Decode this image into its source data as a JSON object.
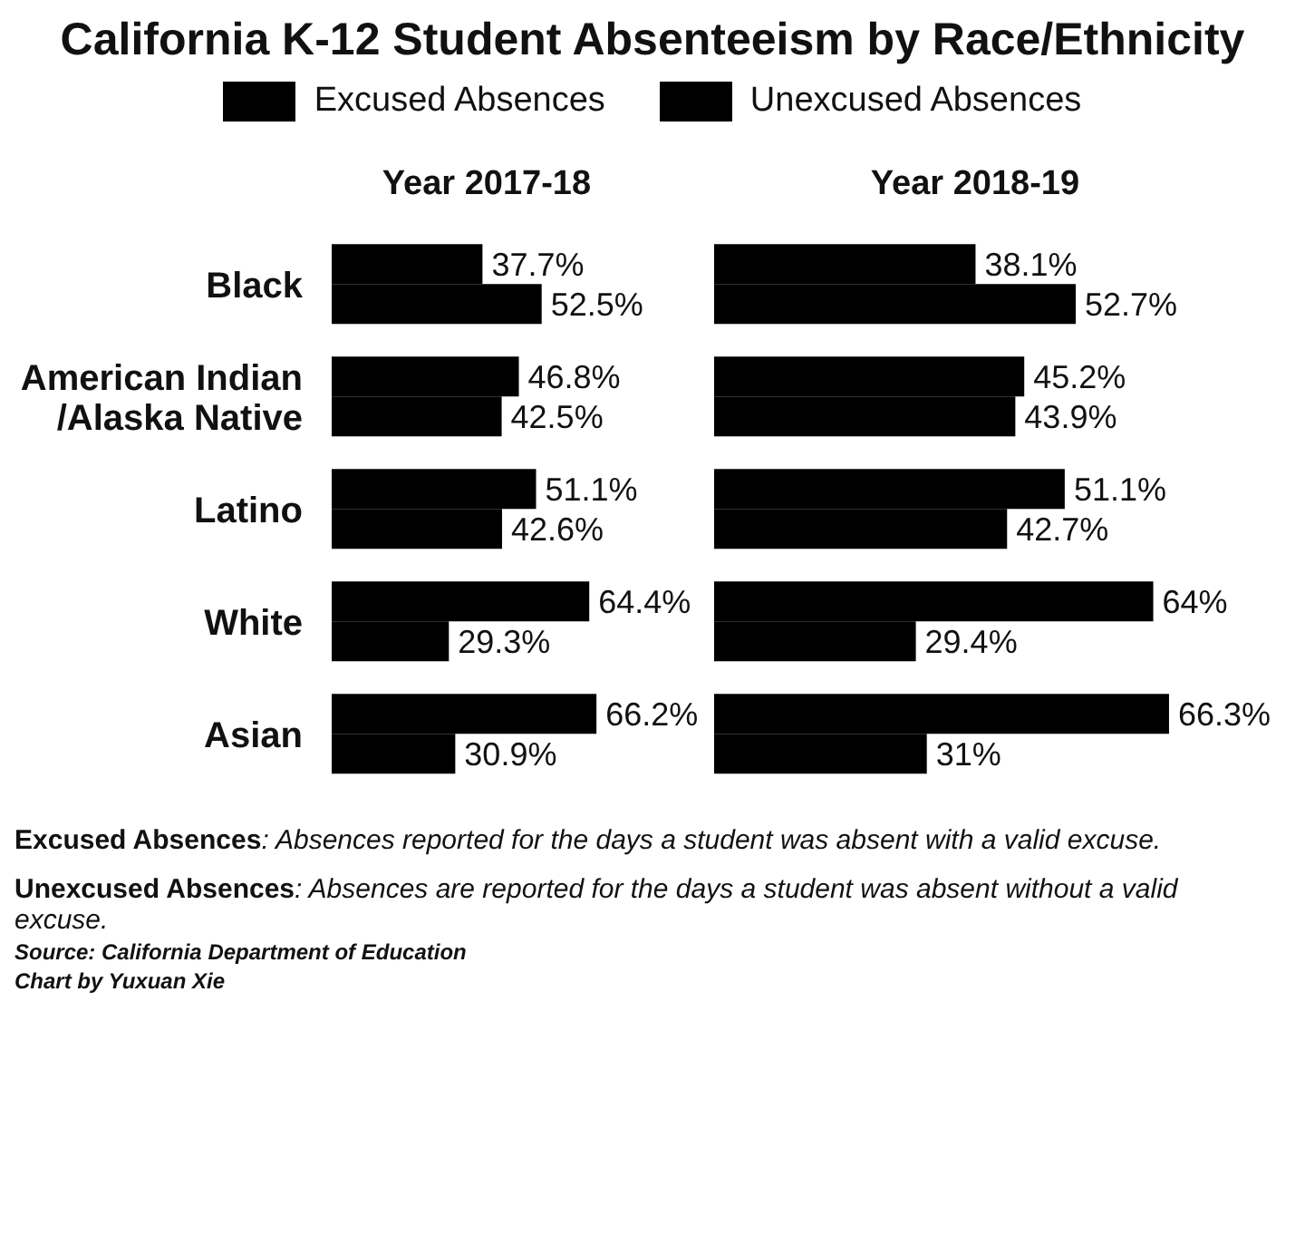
{
  "chart_data": [
    {
      "type": "other",
      "title": "California K-12 Student Absenteeism by Race/Ethnicity",
      "annotations": [
        "Excused Absences: Absences reported for the days a student was absent with a valid excuse.",
        "Unexcused Absences: Absences are reported for the days a student was absent without a valid excuse.",
        "Source: California Department of Education",
        "Chart by Yuxuan Xie"
      ]
    },
    {
      "type": "bar",
      "orientation": "horizontal",
      "title": "Year 2017-18",
      "categories": [
        "Black",
        "American Indian /Alaska Native",
        "Latino",
        "White",
        "Asian"
      ],
      "legend": "top",
      "series": [
        {
          "name": "Excused Absences",
          "color": "#000000",
          "values": [
            37.7,
            46.8,
            51.1,
            64.4,
            66.2
          ],
          "value_labels": [
            "37.7%",
            "46.8%",
            "51.1%",
            "64.4%",
            "66.2%"
          ]
        },
        {
          "name": "Unexcused Absences",
          "color": "#000000",
          "values": [
            52.5,
            42.5,
            42.6,
            29.3,
            30.9
          ],
          "value_labels": [
            "52.5%",
            "42.5%",
            "42.6%",
            "29.3%",
            "30.9%"
          ]
        }
      ]
    },
    {
      "type": "bar",
      "orientation": "horizontal",
      "title": "Year 2018-19",
      "categories": [
        null,
        null,
        null,
        null,
        null
      ],
      "tick_labels": false,
      "series": [
        {
          "color": "#000000",
          "values": [
            38.1,
            45.2,
            51.1,
            64,
            66.3
          ],
          "value_labels": [
            "38.1%",
            "45.2%",
            "51.1%",
            "64%",
            "66.3%"
          ]
        },
        {
          "color": "#000000",
          "values": [
            52.7,
            43.9,
            42.7,
            29.4,
            31
          ],
          "value_labels": [
            "52.7%",
            "43.9%",
            "42.7%",
            "29.4%",
            "31%"
          ]
        }
      ]
    }
  ]
}
